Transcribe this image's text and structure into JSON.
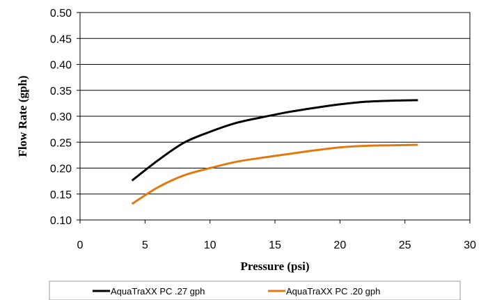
{
  "chart_data": {
    "type": "line",
    "xlabel": "Pressure (psi)",
    "ylabel": "Flow Rate (gph)",
    "xlim": [
      0,
      30
    ],
    "ylim": [
      0.1,
      0.5
    ],
    "x_ticks": [
      "0",
      "5",
      "10",
      "15",
      "20",
      "25",
      "30"
    ],
    "y_ticks": [
      "0.10",
      "0.15",
      "0.20",
      "0.25",
      "0.30",
      "0.35",
      "0.40",
      "0.45",
      "0.50"
    ],
    "grid": "horizontal",
    "legend_position": "bottom",
    "series": [
      {
        "name": "AquaTraXX PC .27 gph",
        "color": "#000000",
        "x": [
          4,
          6,
          8,
          10,
          12,
          14,
          16,
          18,
          20,
          22,
          24,
          26
        ],
        "y": [
          0.176,
          0.215,
          0.249,
          0.27,
          0.287,
          0.298,
          0.308,
          0.316,
          0.323,
          0.328,
          0.33,
          0.331
        ]
      },
      {
        "name": "AquaTraXX PC .20 gph",
        "color": "#E07A10",
        "x": [
          4,
          6,
          8,
          10,
          12,
          14,
          16,
          18,
          20,
          22,
          24,
          26
        ],
        "y": [
          0.131,
          0.163,
          0.186,
          0.2,
          0.212,
          0.22,
          0.227,
          0.234,
          0.24,
          0.243,
          0.244,
          0.245
        ]
      }
    ]
  }
}
